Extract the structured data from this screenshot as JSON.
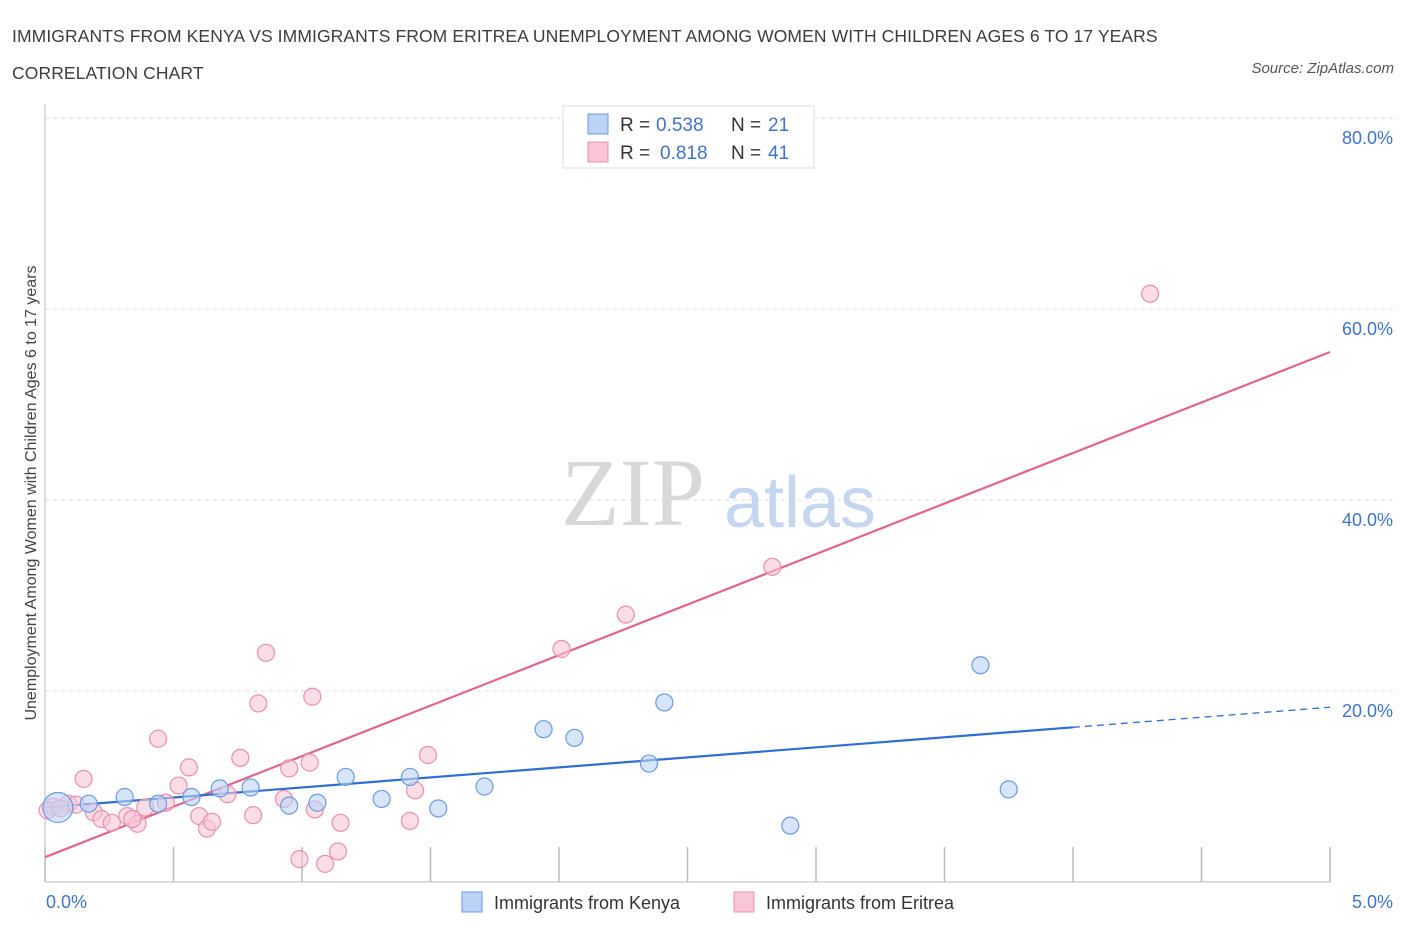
{
  "title": "IMMIGRANTS FROM KENYA VS IMMIGRANTS FROM ERITREA UNEMPLOYMENT AMONG WOMEN WITH CHILDREN AGES 6 TO 17 YEARS CORRELATION CHART",
  "source": "Source: ZipAtlas.com",
  "watermark": {
    "zip": "ZIP",
    "atlas": "atlas"
  },
  "colors": {
    "kenya": "#6a9be6",
    "kenya_fill": "#bcd3f6",
    "kenya_line": "#2f6fd0",
    "eritrea": "#ec8fb0",
    "eritrea_fill": "#f8c6d6",
    "eritrea_line": "#e2648e",
    "tick": "#3f74c9"
  },
  "legend": {
    "kenya": {
      "r_label": "R =",
      "r_value": "0.538",
      "n_label": "N =",
      "n_value": "21"
    },
    "eritrea": {
      "r_label": "R =",
      "r_value": "0.818",
      "n_label": "N =",
      "n_value": "41"
    }
  },
  "chart_data": {
    "type": "scatter",
    "title": "IMMIGRANTS FROM KENYA VS IMMIGRANTS FROM ERITREA UNEMPLOYMENT AMONG WOMEN WITH CHILDREN AGES 6 TO 17 YEARS CORRELATION CHART",
    "xlabel": "",
    "ylabel": "Unemployment Among Women with Children Ages 6 to 17 years",
    "xlim": [
      0,
      5
    ],
    "ylim": [
      0,
      80
    ],
    "x_tick_labels": [
      "0.0%",
      "5.0%"
    ],
    "y_tick_labels": [
      "20.0%",
      "40.0%",
      "60.0%",
      "80.0%"
    ],
    "y_ticks": [
      20,
      40,
      60,
      80
    ],
    "series": [
      {
        "name": "Immigrants from Kenya",
        "r": 0.538,
        "n": 21,
        "points": [
          [
            0.05,
            7.8
          ],
          [
            0.17,
            8.2
          ],
          [
            0.31,
            8.9
          ],
          [
            0.44,
            8.2
          ],
          [
            0.57,
            8.9
          ],
          [
            0.68,
            9.8
          ],
          [
            0.8,
            9.9
          ],
          [
            0.95,
            8.0
          ],
          [
            1.06,
            8.3
          ],
          [
            1.17,
            11.0
          ],
          [
            1.31,
            8.7
          ],
          [
            1.42,
            11.0
          ],
          [
            1.53,
            7.7
          ],
          [
            1.71,
            10.0
          ],
          [
            1.94,
            16.0
          ],
          [
            2.06,
            15.1
          ],
          [
            2.35,
            12.4
          ],
          [
            2.41,
            18.8
          ],
          [
            2.9,
            5.9
          ],
          [
            3.64,
            22.7
          ],
          [
            3.75,
            9.7
          ]
        ],
        "trend": {
          "x0": 0.0,
          "y0": 7.8,
          "x1": 4.0,
          "y1": 16.2,
          "dash_x1": 5.0,
          "dash_y1": 18.3
        }
      },
      {
        "name": "Immigrants from Eritrea",
        "r": 0.818,
        "n": 41,
        "points": [
          [
            0.03,
            7.9
          ],
          [
            0.09,
            8.2
          ],
          [
            0.12,
            8.1
          ],
          [
            0.15,
            10.8
          ],
          [
            0.19,
            7.3
          ],
          [
            0.22,
            6.6
          ],
          [
            0.26,
            6.2
          ],
          [
            0.32,
            6.9
          ],
          [
            0.36,
            6.1
          ],
          [
            0.39,
            7.8
          ],
          [
            0.44,
            15.0
          ],
          [
            0.47,
            8.3
          ],
          [
            0.52,
            10.1
          ],
          [
            0.56,
            12.0
          ],
          [
            0.6,
            6.9
          ],
          [
            0.63,
            5.6
          ],
          [
            0.65,
            6.3
          ],
          [
            0.71,
            9.2
          ],
          [
            0.76,
            13.0
          ],
          [
            0.81,
            7.0
          ],
          [
            0.86,
            24.0
          ],
          [
            0.83,
            18.7
          ],
          [
            0.93,
            8.7
          ],
          [
            0.95,
            11.9
          ],
          [
            0.99,
            2.4
          ],
          [
            1.03,
            12.5
          ],
          [
            1.04,
            19.4
          ],
          [
            1.05,
            7.6
          ],
          [
            1.09,
            1.9
          ],
          [
            1.14,
            3.2
          ],
          [
            1.15,
            6.2
          ],
          [
            1.42,
            6.4
          ],
          [
            1.44,
            9.6
          ],
          [
            1.49,
            13.3
          ],
          [
            2.01,
            24.4
          ],
          [
            2.26,
            28.0
          ],
          [
            2.83,
            33.0
          ],
          [
            4.3,
            61.6
          ],
          [
            0.01,
            7.5
          ],
          [
            0.06,
            7.7
          ],
          [
            0.34,
            6.6
          ]
        ],
        "trend": {
          "x0": 0.0,
          "y0": 2.6,
          "x1": 5.0,
          "y1": 55.5
        }
      }
    ],
    "legend": [
      "Immigrants from Kenya",
      "Immigrants from Eritrea"
    ],
    "grid": true
  }
}
